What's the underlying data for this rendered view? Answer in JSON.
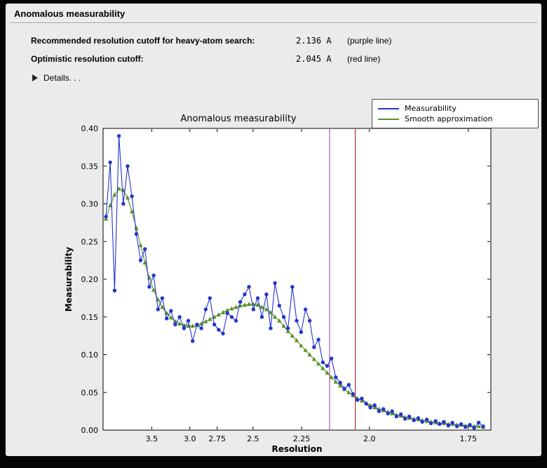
{
  "panel": {
    "title": "Anomalous measurability"
  },
  "info": {
    "rows": [
      {
        "label": "Recommended resolution cutoff for heavy-atom search:",
        "value": "2.136 A",
        "note": "(purple line)"
      },
      {
        "label": "Optimistic resolution cutoff:",
        "value": "2.045 A",
        "note": "(red line)"
      }
    ],
    "details_label": "Details. . ."
  },
  "chart_data": {
    "type": "line",
    "title": "Anomalous measurability",
    "xlabel": "Resolution",
    "ylabel": "Measurability",
    "x_axis": {
      "scale": "1/d^2",
      "s_left": 0.044,
      "s_right": 0.344,
      "ticks": [
        3.5,
        3.0,
        2.75,
        2.5,
        2.25,
        2.0,
        1.75
      ],
      "tick_labels": [
        "3.5",
        "3.0",
        "2.75",
        "2.5",
        "2.25",
        "2.0",
        "1.75"
      ]
    },
    "y_axis": {
      "min": 0.0,
      "max": 0.4,
      "tick_step": 0.05
    },
    "legend": {
      "position": "upper right",
      "entries": [
        {
          "label": "Measurability",
          "color": "#2336cc"
        },
        {
          "label": "Smooth approximation",
          "color": "#568f22"
        }
      ]
    },
    "cutoff_lines": [
      {
        "id": "purple-cutoff-line",
        "resolution": 2.136,
        "color": "#b34fc0",
        "name": "purple line"
      },
      {
        "id": "red-cutoff-line",
        "resolution": 2.045,
        "color": "#a5362a",
        "name": "red line"
      }
    ],
    "resolutions": [
      4.652,
      4.492,
      4.348,
      4.216,
      4.096,
      3.985,
      3.883,
      3.788,
      3.7,
      3.618,
      3.541,
      3.469,
      3.401,
      3.337,
      3.276,
      3.219,
      3.165,
      3.113,
      3.063,
      3.016,
      2.971,
      2.928,
      2.887,
      2.847,
      2.81,
      2.773,
      2.738,
      2.704,
      2.672,
      2.64,
      2.61,
      2.581,
      2.552,
      2.525,
      2.498,
      2.472,
      2.448,
      2.423,
      2.4,
      2.377,
      2.355,
      2.333,
      2.312,
      2.292,
      2.272,
      2.252,
      2.233,
      2.215,
      2.197,
      2.179,
      2.162,
      2.145,
      2.129,
      2.113,
      2.097,
      2.082,
      2.067,
      2.053,
      2.038,
      2.024,
      2.01,
      1.997,
      1.984,
      1.971,
      1.958,
      1.945,
      1.933,
      1.921,
      1.909,
      1.898,
      1.887,
      1.875,
      1.864,
      1.854,
      1.843,
      1.833,
      1.822,
      1.813,
      1.803,
      1.793,
      1.784,
      1.774,
      1.765,
      1.756,
      1.747,
      1.738,
      1.729,
      1.72
    ],
    "series": [
      {
        "name": "Measurability",
        "color": "#2336cc",
        "marker": "circle",
        "values": [
          0.283,
          0.355,
          0.185,
          0.39,
          0.3,
          0.35,
          0.31,
          0.26,
          0.225,
          0.24,
          0.19,
          0.205,
          0.16,
          0.175,
          0.148,
          0.158,
          0.14,
          0.15,
          0.135,
          0.145,
          0.118,
          0.14,
          0.135,
          0.16,
          0.175,
          0.14,
          0.133,
          0.128,
          0.155,
          0.15,
          0.145,
          0.17,
          0.18,
          0.19,
          0.16,
          0.175,
          0.15,
          0.18,
          0.135,
          0.195,
          0.165,
          0.15,
          0.135,
          0.19,
          0.145,
          0.13,
          0.16,
          0.145,
          0.11,
          0.12,
          0.09,
          0.085,
          0.095,
          0.07,
          0.063,
          0.055,
          0.06,
          0.048,
          0.04,
          0.042,
          0.035,
          0.03,
          0.033,
          0.025,
          0.028,
          0.022,
          0.025,
          0.018,
          0.021,
          0.015,
          0.018,
          0.013,
          0.016,
          0.011,
          0.014,
          0.009,
          0.012,
          0.008,
          0.011,
          0.006,
          0.01,
          0.005,
          0.008,
          0.004,
          0.007,
          0.003,
          0.01,
          0.005
        ]
      },
      {
        "name": "Smooth approximation",
        "color": "#568f22",
        "marker": "triangle",
        "values": [
          0.28,
          0.298,
          0.312,
          0.32,
          0.318,
          0.308,
          0.29,
          0.268,
          0.245,
          0.222,
          0.202,
          0.186,
          0.173,
          0.163,
          0.155,
          0.149,
          0.144,
          0.141,
          0.139,
          0.138,
          0.138,
          0.139,
          0.141,
          0.144,
          0.147,
          0.15,
          0.153,
          0.156,
          0.159,
          0.161,
          0.163,
          0.165,
          0.166,
          0.167,
          0.167,
          0.166,
          0.163,
          0.16,
          0.156,
          0.15,
          0.145,
          0.138,
          0.131,
          0.125,
          0.119,
          0.112,
          0.106,
          0.1,
          0.094,
          0.088,
          0.082,
          0.076,
          0.07,
          0.064,
          0.059,
          0.054,
          0.05,
          0.046,
          0.042,
          0.039,
          0.036,
          0.033,
          0.03,
          0.028,
          0.026,
          0.024,
          0.022,
          0.02,
          0.019,
          0.017,
          0.016,
          0.015,
          0.014,
          0.013,
          0.012,
          0.011,
          0.01,
          0.009,
          0.009,
          0.008,
          0.008,
          0.007,
          0.007,
          0.006,
          0.006,
          0.005,
          0.005,
          0.004
        ]
      }
    ]
  }
}
